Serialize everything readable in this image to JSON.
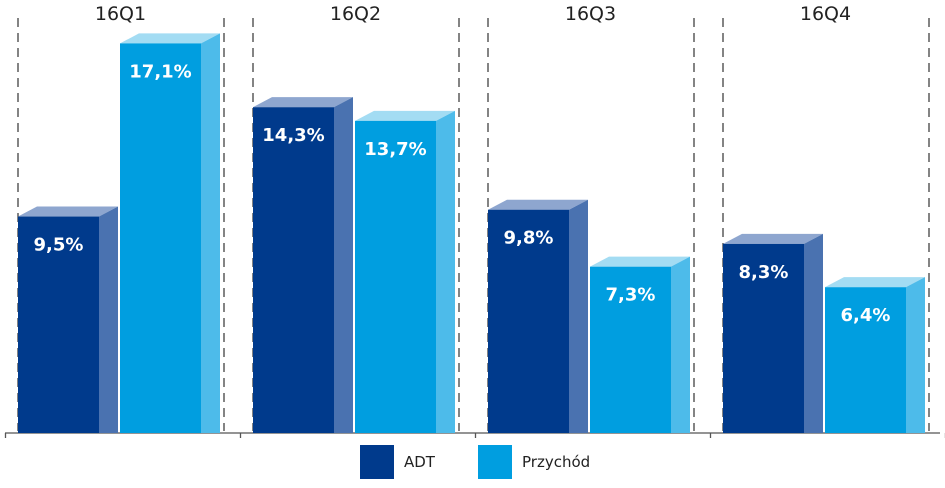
{
  "chart_data": {
    "type": "bar",
    "categories": [
      "16Q1",
      "16Q2",
      "16Q3",
      "16Q4"
    ],
    "series": [
      {
        "name": "ADT",
        "values": [
          9.5,
          14.3,
          9.8,
          8.3
        ],
        "labels": [
          "9,5%",
          "14,3%",
          "9,8%",
          "8,3%"
        ],
        "color": "#003a8c",
        "side_color": "#4a72b0",
        "top_color": "#8ea6cf"
      },
      {
        "name": "Przychód",
        "values": [
          17.1,
          13.7,
          7.3,
          6.4
        ],
        "labels": [
          "17,1%",
          "13,7%",
          "7,3%",
          "6,4%"
        ],
        "color": "#009ee0",
        "side_color": "#4dbbea",
        "top_color": "#a3dcf3"
      }
    ],
    "ylim": [
      0,
      18
    ],
    "grid": false,
    "bar_style": "3d",
    "separators": "dashed",
    "legend": "bottom-center",
    "title": "",
    "xlabel": "",
    "ylabel": ""
  }
}
